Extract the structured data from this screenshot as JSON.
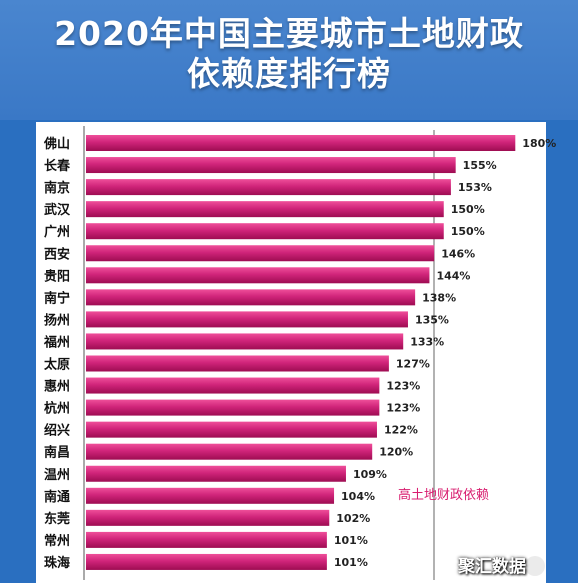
{
  "title": {
    "line1": "2020年中国主要城市土地财政",
    "line2": "依赖度排行榜"
  },
  "chart_data": {
    "type": "bar",
    "orientation": "horizontal",
    "categories": [
      "佛山",
      "长春",
      "南京",
      "武汉",
      "广州",
      "西安",
      "贵阳",
      "南宁",
      "扬州",
      "福州",
      "太原",
      "惠州",
      "杭州",
      "绍兴",
      "南昌",
      "温州",
      "南通",
      "东莞",
      "常州",
      "珠海"
    ],
    "values": [
      180,
      155,
      153,
      150,
      150,
      146,
      144,
      138,
      135,
      133,
      127,
      123,
      123,
      122,
      120,
      109,
      104,
      102,
      101,
      101
    ],
    "value_labels": [
      "180%",
      "155%",
      "153%",
      "150%",
      "150%",
      "146%",
      "144%",
      "138%",
      "135%",
      "133%",
      "127%",
      "123%",
      "123%",
      "122%",
      "120%",
      "109%",
      "104%",
      "102%",
      "101%",
      "101%"
    ],
    "annotation": "高土地财政依赖",
    "bar_color": "#d0247a"
  },
  "watermark": "聚汇数据",
  "colors": {
    "background": "#2a6fc0",
    "bar_start": "#e6348c",
    "bar_end": "#a30d56",
    "annotation": "#d81d6f"
  }
}
